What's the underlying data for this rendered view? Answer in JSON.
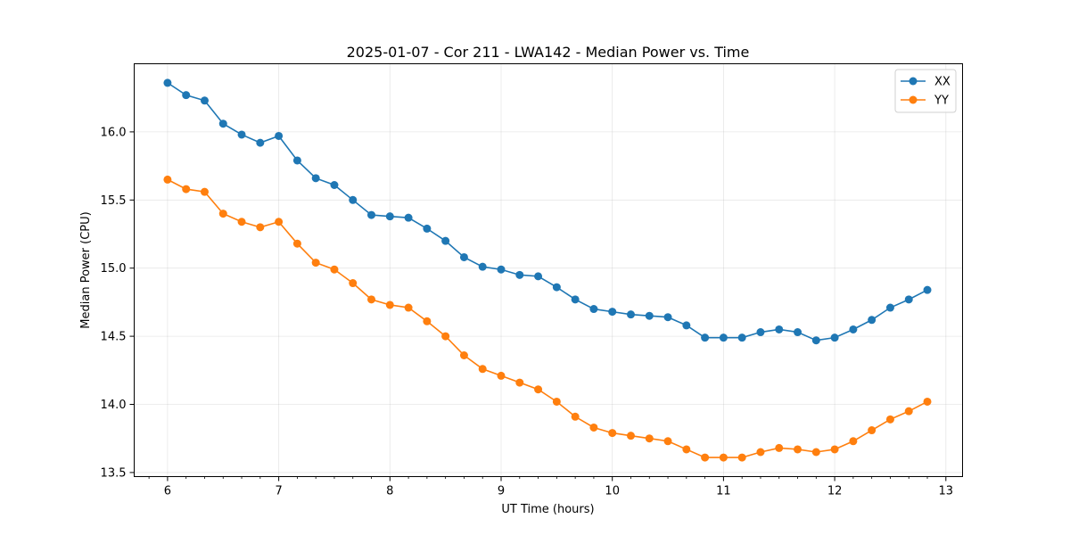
{
  "chart_data": {
    "type": "line",
    "title": "2025-01-07 - Cor 211 - LWA142 - Median Power vs. Time",
    "xlabel": "UT Time (hours)",
    "ylabel": "Median Power (CPU)",
    "xlim": [
      5.7,
      13.15
    ],
    "ylim": [
      13.47,
      16.5
    ],
    "xticks": [
      6,
      7,
      8,
      9,
      10,
      11,
      12,
      13
    ],
    "xtick_labels": [
      "6",
      "7",
      "8",
      "9",
      "10",
      "11",
      "12",
      "13"
    ],
    "yticks": [
      13.5,
      14.0,
      14.5,
      15.0,
      15.5,
      16.0
    ],
    "ytick_labels": [
      "13.5",
      "14.0",
      "14.5",
      "15.0",
      "15.5",
      "16.0"
    ],
    "grid": true,
    "legend_position": "top-right",
    "x": [
      6.0,
      6.1667,
      6.3333,
      6.5,
      6.6667,
      6.8333,
      7.0,
      7.1667,
      7.3333,
      7.5,
      7.6667,
      7.8333,
      8.0,
      8.1667,
      8.3333,
      8.5,
      8.6667,
      8.8333,
      9.0,
      9.1667,
      9.3333,
      9.5,
      9.6667,
      9.8333,
      10.0,
      10.1667,
      10.3333,
      10.5,
      10.6667,
      10.8333,
      11.0,
      11.1667,
      11.3333,
      11.5,
      11.6667,
      11.8333,
      12.0,
      12.1667,
      12.3333,
      12.5,
      12.6667,
      12.8333
    ],
    "series": [
      {
        "name": "XX",
        "color": "#1f77b4",
        "values": [
          16.36,
          16.27,
          16.23,
          16.06,
          15.98,
          15.92,
          15.97,
          15.79,
          15.66,
          15.61,
          15.5,
          15.39,
          15.38,
          15.37,
          15.29,
          15.2,
          15.08,
          15.01,
          14.99,
          14.95,
          14.94,
          14.86,
          14.77,
          14.7,
          14.68,
          14.66,
          14.65,
          14.64,
          14.58,
          14.49,
          14.49,
          14.49,
          14.53,
          14.55,
          14.53,
          14.47,
          14.49,
          14.55,
          14.62,
          14.71,
          14.77,
          14.84
        ]
      },
      {
        "name": "YY",
        "color": "#ff7f0e",
        "values": [
          15.65,
          15.58,
          15.56,
          15.4,
          15.34,
          15.3,
          15.34,
          15.18,
          15.04,
          14.99,
          14.89,
          14.77,
          14.73,
          14.71,
          14.61,
          14.5,
          14.36,
          14.26,
          14.21,
          14.16,
          14.11,
          14.02,
          13.91,
          13.83,
          13.79,
          13.77,
          13.75,
          13.73,
          13.67,
          13.61,
          13.61,
          13.61,
          13.65,
          13.68,
          13.67,
          13.65,
          13.67,
          13.73,
          13.81,
          13.89,
          13.95,
          14.02
        ]
      }
    ]
  }
}
